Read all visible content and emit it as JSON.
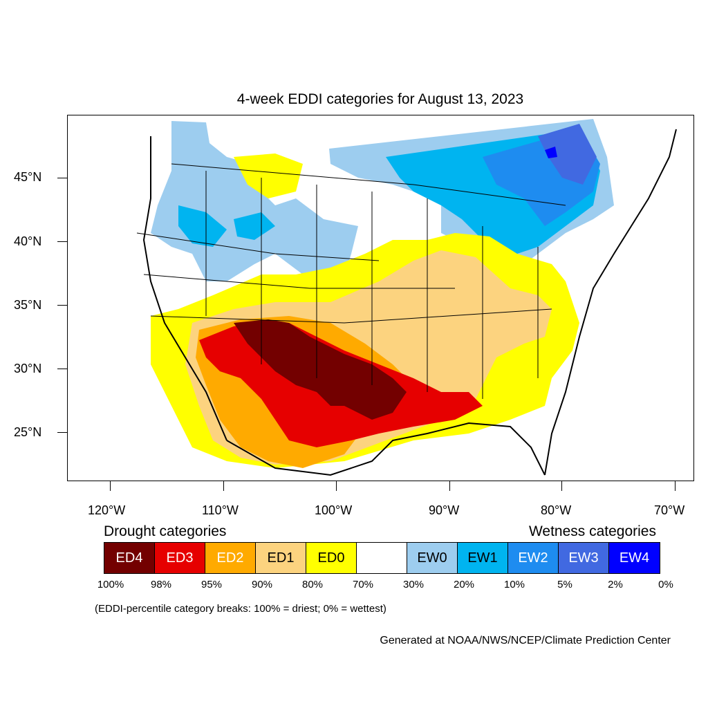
{
  "title": "4-week EDDI categories for August 13, 2023",
  "lat_labels": [
    "45°N",
    "40°N",
    "35°N",
    "30°N",
    "25°N"
  ],
  "lon_labels": [
    "120°W",
    "110°W",
    "100°W",
    "90°W",
    "80°W",
    "70°W"
  ],
  "legend": {
    "drought_heading": "Drought categories",
    "wetness_heading": "Wetness categories",
    "categories": [
      {
        "label": "ED4",
        "color": "#730000",
        "text_color": "#ffffff"
      },
      {
        "label": "ED3",
        "color": "#e60000",
        "text_color": "#ffffff"
      },
      {
        "label": "ED2",
        "color": "#ffaa00",
        "text_color": "#ffffff"
      },
      {
        "label": "ED1",
        "color": "#fcd37f",
        "text_color": "#000000"
      },
      {
        "label": "ED0",
        "color": "#ffff00",
        "text_color": "#000000"
      },
      {
        "label": "",
        "color": "#ffffff",
        "text_color": "#000000"
      },
      {
        "label": "EW0",
        "color": "#9dcdef",
        "text_color": "#000000"
      },
      {
        "label": "EW1",
        "color": "#00b4f0",
        "text_color": "#000000"
      },
      {
        "label": "EW2",
        "color": "#1e8cf0",
        "text_color": "#ffffff"
      },
      {
        "label": "EW3",
        "color": "#4169e1",
        "text_color": "#ffffff"
      },
      {
        "label": "EW4",
        "color": "#0000ff",
        "text_color": "#ffffff"
      }
    ],
    "breaks": [
      "100%",
      "98%",
      "95%",
      "90%",
      "80%",
      "70%",
      "30%",
      "20%",
      "10%",
      "5%",
      "2%",
      "0%"
    ]
  },
  "note": "(EDDI-percentile category breaks: 100% = driest; 0% = wettest)",
  "credit": "Generated at NOAA/NWS/NCEP/Climate Prediction Center"
}
